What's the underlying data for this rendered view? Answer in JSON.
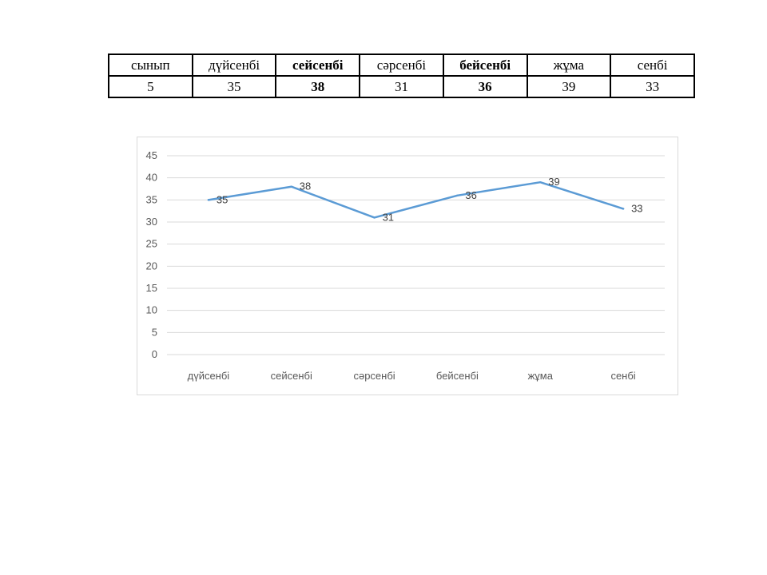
{
  "table": {
    "header": [
      {
        "text": "сынып",
        "bold": false
      },
      {
        "text": "дүйсенбі",
        "bold": false
      },
      {
        "text": "сейсенбі",
        "bold": true
      },
      {
        "text": "сәрсенбі",
        "bold": false
      },
      {
        "text": "бейсенбі",
        "bold": true
      },
      {
        "text": "жұма",
        "bold": false
      },
      {
        "text": "сенбі",
        "bold": false
      }
    ],
    "row": [
      {
        "text": "5",
        "bold": false
      },
      {
        "text": "35",
        "bold": false
      },
      {
        "text": "38",
        "bold": true
      },
      {
        "text": "31",
        "bold": false
      },
      {
        "text": "36",
        "bold": true
      },
      {
        "text": "39",
        "bold": false
      },
      {
        "text": "33",
        "bold": false
      }
    ]
  },
  "chart_data": {
    "type": "line",
    "categories": [
      "дүйсенбі",
      "сейсенбі",
      "сәрсенбі",
      "бейсенбі",
      "жұма",
      "сенбі"
    ],
    "series": [
      {
        "values": [
          35,
          38,
          31,
          36,
          39,
          33
        ],
        "color": "#5b9bd5"
      }
    ],
    "data_labels": true,
    "ylim": [
      0,
      45
    ],
    "yticks": [
      0,
      5,
      10,
      15,
      20,
      25,
      30,
      35,
      40,
      45
    ],
    "grid": true,
    "legend": "none",
    "title": "",
    "xlabel": "",
    "ylabel": "",
    "gridline_color": "#d9d9d9"
  }
}
